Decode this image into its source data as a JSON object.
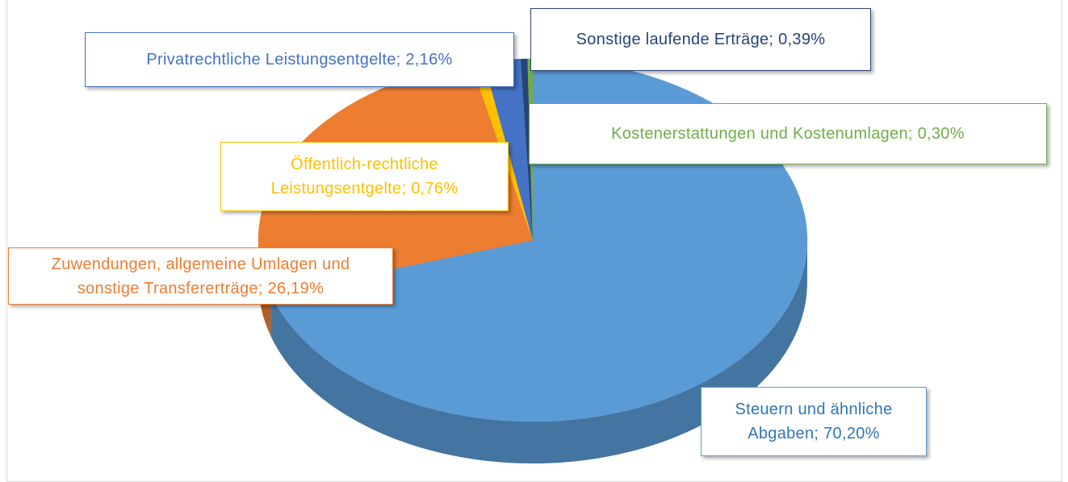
{
  "chart_data": {
    "type": "pie",
    "categories": [
      "Steuern und ähnliche Abgaben",
      "Zuwendungen, allgemeine Umlagen und sonstige Transfererträge",
      "Öffentlich-rechtliche Leistungsentgelte",
      "Privatrechtliche Leistungsentgelte",
      "Sonstige laufende Erträge",
      "Kostenerstattungen und Kostenumlagen"
    ],
    "values": [
      70.2,
      26.19,
      0.76,
      2.16,
      0.39,
      0.3
    ],
    "value_labels": [
      "70,20%",
      "26,19%",
      "0,76%",
      "2,16%",
      "0,39%",
      "0,30%"
    ],
    "label_separator": "; ",
    "colors": [
      "#5b9bd5",
      "#ed7d31",
      "#ffc000",
      "#4472c4",
      "#264478",
      "#70ad47"
    ]
  }
}
